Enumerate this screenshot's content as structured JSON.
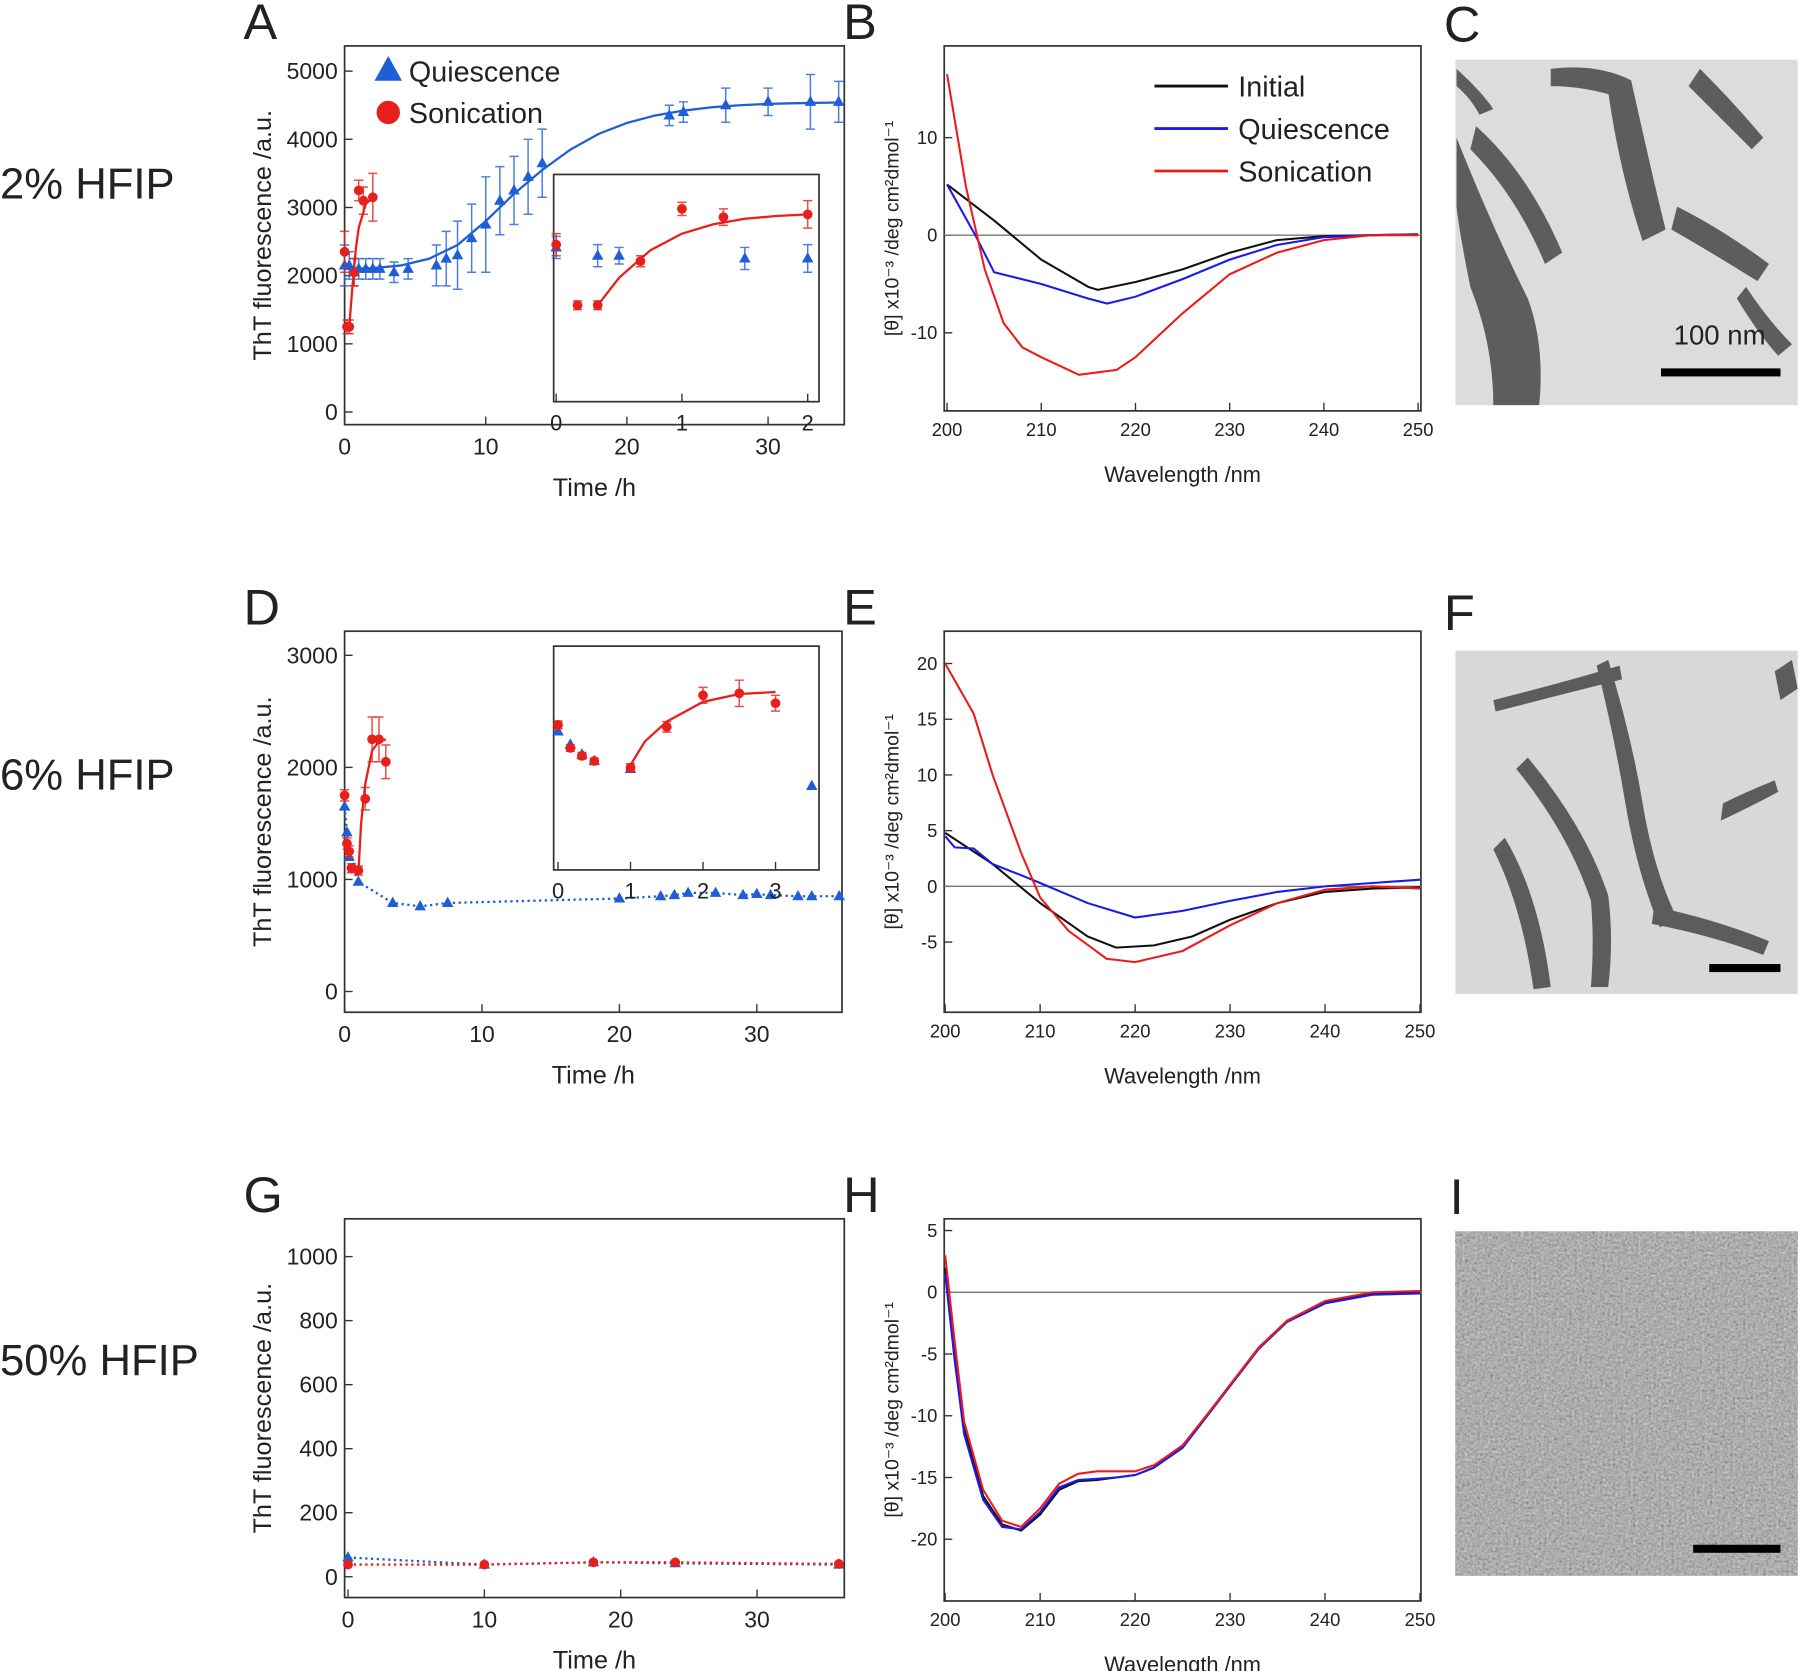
{
  "row_labels": [
    "2% HFIP",
    "6% HFIP",
    "50% HFIP"
  ],
  "micrographs": [
    {
      "panel": "C",
      "scale_bar_label": "100 nm"
    },
    {
      "panel": "F"
    },
    {
      "panel": "I"
    }
  ],
  "chart_data": [
    {
      "type": "scatter",
      "panel": "A",
      "xlabel": "Time /h",
      "ylabel": "ThT fluorescence /a.u.",
      "xlim": [
        0,
        35.4
      ],
      "ylim": [
        -185,
        5370
      ],
      "xticks": [
        0,
        10,
        20,
        30
      ],
      "yticks": [
        0,
        1000,
        2000,
        3000,
        4000,
        5000
      ],
      "legend": "upper left",
      "series": [
        {
          "name": "Quiescence",
          "color": "#1f5fd6",
          "marker": "triangle",
          "line": "none",
          "x": [
            0,
            0.33,
            0.67,
            1,
            1.5,
            2,
            2.5,
            3.5,
            4.5,
            6.5,
            7.2,
            8,
            9,
            10,
            11,
            12,
            13,
            14,
            23,
            24,
            27,
            30,
            33,
            35
          ],
          "values": [
            2150,
            2150,
            2050,
            2100,
            2100,
            2100,
            2100,
            2050,
            2100,
            2150,
            2250,
            2300,
            2550,
            2750,
            3100,
            3250,
            3450,
            3650,
            4350,
            4400,
            4500,
            4550,
            4550,
            4550
          ],
          "errors": [
            300,
            200,
            200,
            150,
            150,
            150,
            150,
            150,
            150,
            300,
            400,
            500,
            500,
            700,
            500,
            500,
            550,
            500,
            150,
            150,
            250,
            200,
            400,
            300
          ]
        },
        {
          "name": "Sonication",
          "color": "#e8201c",
          "marker": "circle",
          "line": "none",
          "x": [
            0,
            0.17,
            0.33,
            0.67,
            1,
            1.33,
            2
          ],
          "values": [
            2350,
            1250,
            1250,
            2050,
            3250,
            3100,
            3150
          ],
          "errors": [
            300,
            100,
            100,
            200,
            150,
            200,
            350
          ]
        },
        {
          "color": "#1f5fd6",
          "marker": "none",
          "line": "solid",
          "x": [
            0,
            2,
            4,
            6,
            8,
            10,
            12,
            14,
            16,
            18,
            20,
            22,
            24,
            26,
            28,
            30,
            32,
            35
          ],
          "values": [
            2100,
            2110,
            2150,
            2250,
            2450,
            2800,
            3200,
            3550,
            3850,
            4080,
            4240,
            4350,
            4420,
            4470,
            4500,
            4520,
            4530,
            4540
          ]
        },
        {
          "color": "#e8201c",
          "marker": "none",
          "line": "solid",
          "x": [
            0.33,
            0.5,
            0.67,
            0.8,
            1,
            1.5,
            2
          ],
          "values": [
            1250,
            1700,
            2100,
            2400,
            2700,
            3050,
            3150
          ]
        }
      ]
    },
    {
      "type": "scatter",
      "xlim": [
        -0.02,
        2.09
      ],
      "ylim": [
        -500,
        3625
      ],
      "xticks": [
        0,
        1,
        2
      ],
      "series": [
        {
          "color": "#1f5fd6",
          "marker": "triangle",
          "line": "none",
          "x": [
            0,
            0.33,
            0.5,
            1.5,
            2
          ],
          "values": [
            2300,
            2150,
            2150,
            2100,
            2100
          ],
          "errors": [
            200,
            200,
            150,
            200,
            250
          ]
        },
        {
          "color": "#e8201c",
          "marker": "circle",
          "line": "none",
          "x": [
            0,
            0.17,
            0.33,
            0.67,
            1,
            1.33,
            2
          ],
          "values": [
            2350,
            1250,
            1250,
            2050,
            3000,
            2850,
            2900
          ],
          "errors": [
            200,
            80,
            80,
            100,
            120,
            150,
            250
          ]
        },
        {
          "color": "#e8201c",
          "marker": "none",
          "line": "solid",
          "x": [
            0.33,
            0.5,
            0.75,
            1,
            1.25,
            1.5,
            1.75,
            2
          ],
          "values": [
            1250,
            1750,
            2250,
            2550,
            2720,
            2820,
            2870,
            2900
          ]
        }
      ]
    },
    {
      "type": "line",
      "panel": "B",
      "xlabel": "Wavelength /nm",
      "ylabel": "[θ] x10⁻³ /deg cm²dmol⁻¹",
      "xlim": [
        199.7,
        250.3
      ],
      "ylim": [
        -18,
        19.4
      ],
      "xticks": [
        200,
        210,
        220,
        230,
        240,
        250
      ],
      "yticks": [
        -10,
        0,
        10
      ],
      "hline": 0,
      "legend": "upper right",
      "series": [
        {
          "name": "Initial",
          "color": "#111111",
          "x": [
            200,
            205,
            210,
            215,
            216,
            220,
            225,
            230,
            235,
            240,
            245,
            250
          ],
          "values": [
            5.2,
            1.5,
            -2.5,
            -5.3,
            -5.6,
            -4.8,
            -3.5,
            -1.8,
            -0.5,
            -0.1,
            0,
            0.1
          ]
        },
        {
          "name": "Quiescence",
          "color": "#1a1aee",
          "x": [
            200,
            203,
            205,
            210,
            215,
            217,
            220,
            225,
            230,
            235,
            240,
            245,
            250
          ],
          "values": [
            5.2,
            0,
            -3.8,
            -5,
            -6.5,
            -7,
            -6.3,
            -4.5,
            -2.5,
            -1,
            -0.2,
            0,
            0.1
          ]
        },
        {
          "name": "Sonication",
          "color": "#ee1a1a",
          "x": [
            200,
            202,
            204,
            206,
            208,
            210,
            214,
            218,
            220,
            225,
            230,
            235,
            240,
            245,
            250
          ],
          "values": [
            16.5,
            5,
            -3.5,
            -9,
            -11.5,
            -12.5,
            -14.3,
            -13.8,
            -12.5,
            -8,
            -4,
            -1.8,
            -0.5,
            0,
            0
          ]
        }
      ]
    },
    {
      "type": "scatter",
      "panel": "D",
      "xlabel": "Time /h",
      "ylabel": "ThT fluorescence /a.u.",
      "xlim": [
        0,
        36.2
      ],
      "ylim": [
        -185,
        3215
      ],
      "xticks": [
        0,
        10,
        20,
        30
      ],
      "yticks": [
        0,
        1000,
        2000,
        3000
      ],
      "series": [
        {
          "color": "#1f5fd6",
          "marker": "triangle",
          "line": "dotted",
          "x": [
            0,
            0.17,
            0.33,
            0.67,
            1,
            3.5,
            5.5,
            7.5,
            20,
            23,
            24,
            25,
            27,
            29,
            30,
            31,
            33,
            34,
            36
          ],
          "values": [
            1650,
            1420,
            1200,
            1100,
            980,
            790,
            760,
            790,
            830,
            850,
            860,
            880,
            880,
            860,
            870,
            860,
            850,
            850,
            850
          ]
        },
        {
          "color": "#e8201c",
          "marker": "circle",
          "line": "none",
          "x": [
            0,
            0.17,
            0.33,
            0.5,
            1,
            1.5,
            2,
            2.5,
            3
          ],
          "values": [
            1750,
            1320,
            1250,
            1100,
            1080,
            1720,
            2250,
            2250,
            2050
          ],
          "errors": [
            50,
            50,
            50,
            40,
            40,
            100,
            200,
            200,
            150
          ]
        },
        {
          "color": "#e8201c",
          "marker": "none",
          "line": "solid",
          "x": [
            1,
            1.2,
            1.5,
            2,
            2.5,
            3
          ],
          "values": [
            1050,
            1500,
            1850,
            2150,
            2230,
            2250
          ]
        }
      ]
    },
    {
      "type": "scatter",
      "xlim": [
        -0.06,
        3.6
      ],
      "ylim": [
        -456,
        2948
      ],
      "xticks": [
        0,
        1,
        2,
        3
      ],
      "series": [
        {
          "color": "#1f5fd6",
          "marker": "triangle",
          "line": "none",
          "x": [
            0,
            0.17,
            0.33,
            0.5,
            1,
            3.5
          ],
          "values": [
            1650,
            1450,
            1300,
            1200,
            1080,
            820
          ]
        },
        {
          "color": "#e8201c",
          "marker": "circle",
          "line": "none",
          "x": [
            0,
            0.17,
            0.33,
            0.5,
            1,
            1.5,
            2,
            2.5,
            3
          ],
          "values": [
            1750,
            1400,
            1280,
            1200,
            1100,
            1720,
            2200,
            2230,
            2080
          ],
          "errors": [
            60,
            50,
            50,
            40,
            60,
            80,
            120,
            200,
            120
          ]
        },
        {
          "color": "#e8201c",
          "marker": "none",
          "line": "solid",
          "x": [
            0.95,
            1.2,
            1.5,
            2,
            2.5,
            3
          ],
          "values": [
            1050,
            1500,
            1800,
            2100,
            2220,
            2250
          ]
        }
      ]
    },
    {
      "type": "line",
      "panel": "E",
      "xlabel": "Wavelength /nm",
      "ylabel": "[θ] x10⁻³ /deg cm²dmol⁻¹",
      "xlim": [
        199.9,
        250.1
      ],
      "ylim": [
        -11.3,
        22.9
      ],
      "xticks": [
        200,
        210,
        220,
        230,
        240,
        250
      ],
      "yticks": [
        -5,
        0,
        5,
        10,
        15,
        20
      ],
      "hline": 0,
      "series": [
        {
          "color": "#111111",
          "x": [
            200,
            205,
            210,
            215,
            218,
            222,
            226,
            230,
            235,
            240,
            245,
            250
          ],
          "values": [
            4.8,
            2,
            -1.5,
            -4.5,
            -5.5,
            -5.3,
            -4.5,
            -3,
            -1.5,
            -0.5,
            -0.2,
            -0.1
          ]
        },
        {
          "color": "#1a1aee",
          "x": [
            200,
            201,
            203,
            205,
            208,
            210,
            215,
            220,
            225,
            230,
            235,
            240,
            245,
            250
          ],
          "values": [
            4.5,
            3.5,
            3.4,
            2,
            1,
            0.3,
            -1.5,
            -2.8,
            -2.2,
            -1.3,
            -0.5,
            0,
            0.3,
            0.6
          ]
        },
        {
          "color": "#ee1a1a",
          "x": [
            200,
            203,
            205,
            208,
            210,
            213,
            217,
            220,
            225,
            230,
            235,
            240,
            245,
            250
          ],
          "values": [
            20,
            15.5,
            10,
            3,
            -1,
            -4,
            -6.5,
            -6.8,
            -5.8,
            -3.5,
            -1.5,
            -0.3,
            0,
            -0.2
          ]
        }
      ]
    },
    {
      "type": "scatter",
      "panel": "G",
      "xlabel": "Time /h",
      "ylabel": "ThT fluorescence /a.u.",
      "xlim": [
        -0.25,
        36.4
      ],
      "ylim": [
        -65,
        1118
      ],
      "xticks": [
        0,
        10,
        20,
        30
      ],
      "yticks": [
        0,
        200,
        400,
        600,
        800,
        1000
      ],
      "series": [
        {
          "color": "#1f5fd6",
          "marker": "triangle",
          "line": "dotted",
          "x": [
            0,
            10,
            18,
            24,
            36
          ],
          "values": [
            60,
            38,
            45,
            42,
            38
          ]
        },
        {
          "color": "#e8201c",
          "marker": "circle",
          "line": "dotted",
          "x": [
            0,
            10,
            18,
            24,
            36
          ],
          "values": [
            38,
            38,
            45,
            45,
            40
          ]
        }
      ]
    },
    {
      "type": "line",
      "panel": "H",
      "xlabel": "Wavelength /nm",
      "ylabel": "[θ] x10⁻³ /deg cm²dmol⁻¹",
      "xlim": [
        199.9,
        250.1
      ],
      "ylim": [
        -25,
        5.95
      ],
      "xticks": [
        200,
        210,
        220,
        230,
        240,
        250
      ],
      "yticks": [
        -20,
        -15,
        -10,
        -5,
        0,
        5
      ],
      "hline": 0,
      "series": [
        {
          "color": "#111111",
          "x": [
            200,
            201,
            202,
            204,
            206,
            208,
            210,
            212,
            214,
            216,
            218,
            220,
            222,
            225,
            228,
            230,
            233,
            236,
            240,
            245,
            250
          ],
          "values": [
            2,
            -5,
            -11,
            -16.5,
            -18.8,
            -19.3,
            -18,
            -16,
            -15.3,
            -15.2,
            -15,
            -14.8,
            -14.2,
            -12.5,
            -9.5,
            -7.5,
            -4.5,
            -2.3,
            -0.8,
            -0.1,
            0
          ]
        },
        {
          "color": "#1a1aee",
          "x": [
            200,
            201,
            202,
            204,
            206,
            208,
            210,
            212,
            214,
            216,
            218,
            220,
            222,
            225,
            228,
            230,
            233,
            236,
            240,
            245,
            250
          ],
          "values": [
            1.5,
            -5.5,
            -11.5,
            -16.8,
            -19,
            -19.2,
            -17.8,
            -15.8,
            -15.2,
            -15.1,
            -15,
            -14.8,
            -14.2,
            -12.6,
            -9.6,
            -7.6,
            -4.6,
            -2.4,
            -0.9,
            -0.2,
            -0.1
          ]
        },
        {
          "color": "#ee1a1a",
          "x": [
            200,
            201,
            202,
            204,
            206,
            208,
            210,
            212,
            214,
            216,
            218,
            220,
            222,
            225,
            228,
            230,
            233,
            236,
            240,
            245,
            250
          ],
          "values": [
            3,
            -4,
            -10.5,
            -16,
            -18.5,
            -19,
            -17.5,
            -15.5,
            -14.7,
            -14.5,
            -14.5,
            -14.5,
            -14,
            -12.4,
            -9.5,
            -7.5,
            -4.5,
            -2.3,
            -0.7,
            0,
            0.1
          ]
        }
      ]
    }
  ]
}
